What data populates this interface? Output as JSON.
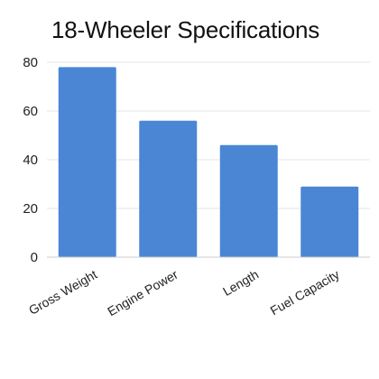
{
  "chart_data": {
    "type": "bar",
    "title": "18-Wheeler Specifications",
    "xlabel": "",
    "ylabel": "",
    "categories": [
      "Gross Weight",
      "Engine Power",
      "Length",
      "Fuel Capacity"
    ],
    "values": [
      78,
      56,
      46,
      29
    ],
    "ylim": [
      0,
      80
    ],
    "yticks": [
      0,
      20,
      40,
      60,
      80
    ],
    "grid": true,
    "bar_color": "#4a86d4"
  }
}
